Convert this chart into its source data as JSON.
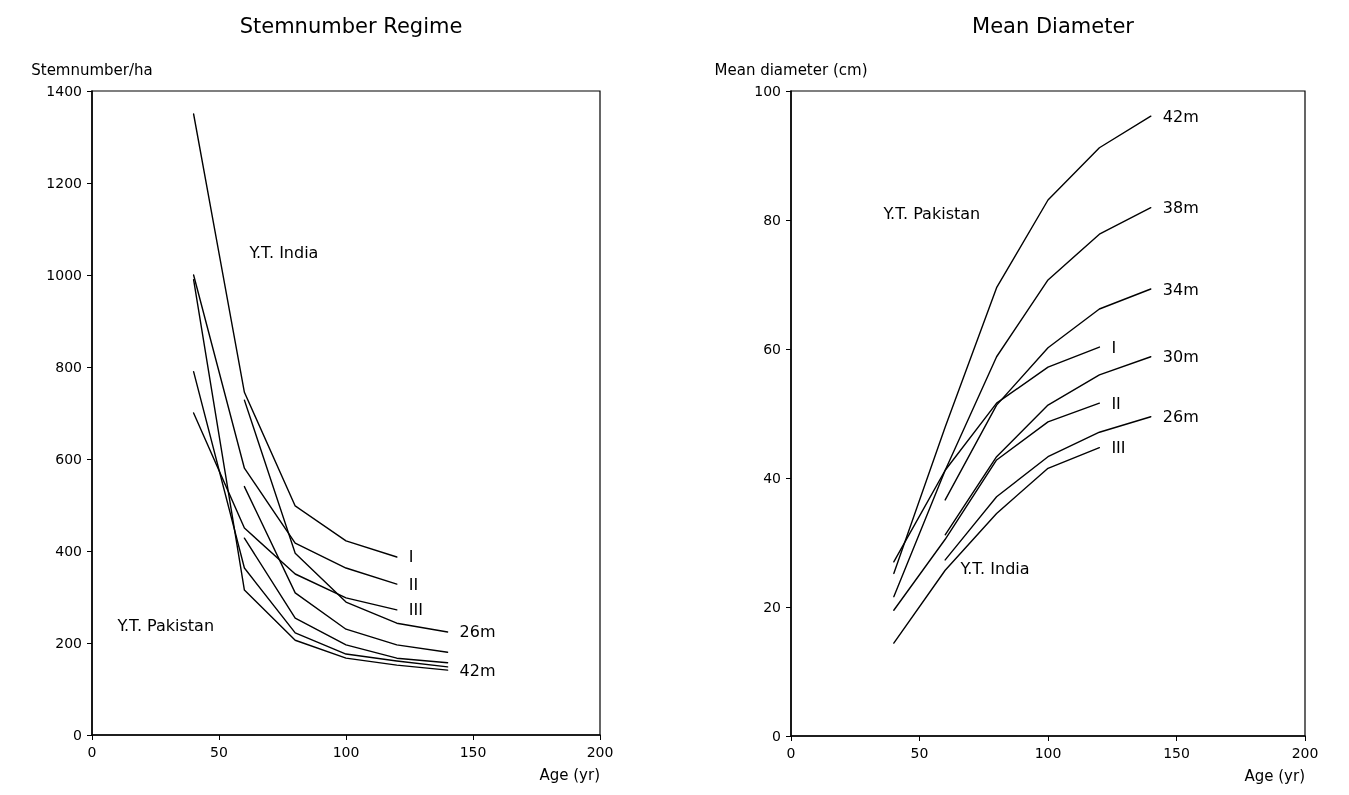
{
  "chart_data": [
    {
      "type": "line",
      "title": "Stemnumber Regime",
      "xlabel": "Age (yr)",
      "ylabel": "Stemnumber/ha",
      "xlim": [
        0,
        200
      ],
      "xticks": [
        0,
        50,
        100,
        150,
        200
      ],
      "ylim": [
        0,
        1400
      ],
      "yticks": [
        0,
        200,
        400,
        600,
        800,
        1000,
        1200,
        1400
      ],
      "grid": false,
      "legend": false,
      "marker": "none",
      "line_style": "solid",
      "annotations": [
        "Y.T. India",
        "Y.T. Pakistan"
      ],
      "series": [
        {
          "name": "I",
          "color": "#000000",
          "x": [
            40,
            60,
            80,
            100,
            120
          ],
          "values": [
            1350,
            745,
            498,
            422,
            387
          ]
        },
        {
          "name": "II",
          "color": "#000000",
          "x": [
            40,
            60,
            80,
            100,
            120
          ],
          "values": [
            1000,
            580,
            417,
            363,
            328
          ]
        },
        {
          "name": "III",
          "color": "#000000",
          "x": [
            40,
            60,
            80,
            100,
            120
          ],
          "values": [
            700,
            450,
            350,
            298,
            272
          ]
        },
        {
          "name": "26m",
          "color": "#000000",
          "x": [
            60,
            80,
            100,
            120,
            140
          ],
          "values": [
            728,
            395,
            289,
            243,
            224
          ]
        },
        {
          "color": "#000000",
          "x": [
            60,
            80,
            100,
            120,
            140
          ],
          "values": [
            540,
            309,
            230,
            196,
            180
          ]
        },
        {
          "color": "#000000",
          "x": [
            60,
            80,
            100,
            120,
            140
          ],
          "values": [
            428,
            254,
            196,
            167,
            157
          ]
        },
        {
          "color": "#000000",
          "x": [
            40,
            60,
            80,
            100,
            120,
            140
          ],
          "values": [
            790,
            363,
            222,
            176,
            161,
            148
          ]
        },
        {
          "name": "42m",
          "color": "#000000",
          "x": [
            40,
            60,
            80,
            100,
            120,
            140
          ],
          "values": [
            990,
            315,
            206,
            167,
            152,
            141
          ]
        }
      ]
    },
    {
      "type": "line",
      "title": "Mean Diameter",
      "xlabel": "Age (yr)",
      "ylabel": "Mean diameter (cm)",
      "xlim": [
        0,
        200
      ],
      "xticks": [
        0,
        50,
        100,
        150,
        200
      ],
      "ylim": [
        0,
        100
      ],
      "yticks": [
        0,
        20,
        40,
        60,
        80,
        100
      ],
      "grid": false,
      "legend": false,
      "marker": "none",
      "line_style": "solid",
      "annotations": [
        "Y.T. Pakistan",
        "Y.T. India"
      ],
      "series": [
        {
          "name": "42m",
          "color": "#000000",
          "x": [
            40,
            60,
            80,
            100,
            120,
            140
          ],
          "values": [
            25.2,
            47.9,
            69.5,
            83.1,
            91.2,
            96.1
          ]
        },
        {
          "name": "38m",
          "color": "#000000",
          "x": [
            40,
            60,
            80,
            100,
            120,
            140
          ],
          "values": [
            21.6,
            41.2,
            58.8,
            70.7,
            77.8,
            81.9
          ]
        },
        {
          "name": "34m",
          "color": "#000000",
          "x": [
            60,
            80,
            100,
            120,
            140
          ],
          "values": [
            36.6,
            51.3,
            60.2,
            66.2,
            69.3
          ]
        },
        {
          "name": "30m",
          "color": "#000000",
          "x": [
            60,
            80,
            100,
            120,
            140
          ],
          "values": [
            31.2,
            43.3,
            51.3,
            56.0,
            58.8
          ]
        },
        {
          "name": "26m",
          "color": "#000000",
          "x": [
            60,
            80,
            100,
            120,
            140
          ],
          "values": [
            27.3,
            37.1,
            43.3,
            47.1,
            49.5
          ]
        },
        {
          "name": "I",
          "color": "#000000",
          "x": [
            40,
            60,
            80,
            100,
            120
          ],
          "values": [
            27.0,
            41.2,
            51.6,
            57.2,
            60.3
          ]
        },
        {
          "name": "II",
          "color": "#000000",
          "x": [
            40,
            60,
            80,
            100,
            120
          ],
          "values": [
            19.5,
            30.5,
            42.8,
            48.7,
            51.6
          ]
        },
        {
          "name": "III",
          "color": "#000000",
          "x": [
            40,
            60,
            80,
            100,
            120
          ],
          "values": [
            14.4,
            25.7,
            34.5,
            41.5,
            44.7
          ]
        }
      ]
    }
  ]
}
